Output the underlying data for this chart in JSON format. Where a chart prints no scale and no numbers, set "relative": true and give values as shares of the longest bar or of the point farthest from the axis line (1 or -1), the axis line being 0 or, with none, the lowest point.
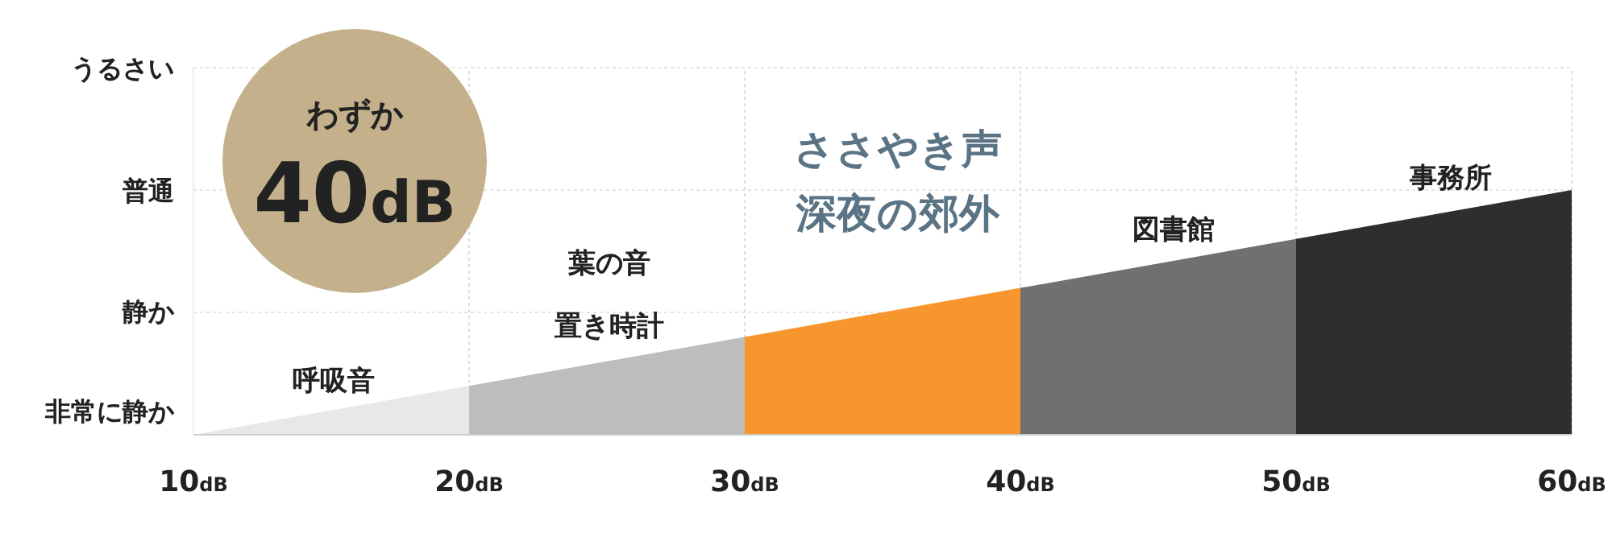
{
  "chart_data": {
    "type": "area",
    "relative": true,
    "xlim": [
      10,
      60
    ],
    "xticks": [
      {
        "value": 10,
        "label": "10dB"
      },
      {
        "value": 20,
        "label": "20dB"
      },
      {
        "value": 30,
        "label": "30dB"
      },
      {
        "value": 40,
        "label": "40dB"
      },
      {
        "value": 50,
        "label": "50dB"
      },
      {
        "value": 60,
        "label": "60dB"
      }
    ],
    "grid": "x",
    "ref_lines": [
      {
        "axis": "y",
        "value": 0.5,
        "color": "#e4e4e4",
        "line_style": "dotted"
      },
      {
        "axis": "y",
        "value": 1,
        "color": "#e4e4e4",
        "line_style": "dotted"
      },
      {
        "axis": "y",
        "value": 1.5,
        "color": "#e4e4e4",
        "line_style": "dotted"
      }
    ],
    "series": [
      {
        "color": "#e8e8e8",
        "x": [
          10,
          20
        ],
        "values": [
          0,
          0.2
        ]
      },
      {
        "color": "#bdbdbd",
        "x": [
          20,
          30
        ],
        "values": [
          0.2,
          0.4
        ]
      },
      {
        "color": "#f7962d",
        "x": [
          30,
          40
        ],
        "values": [
          0.4,
          0.6
        ]
      },
      {
        "color": "#707070",
        "x": [
          40,
          50
        ],
        "values": [
          0.6,
          0.8
        ]
      },
      {
        "color": "#2e2e2e",
        "x": [
          50,
          60
        ],
        "values": [
          0.8,
          1
        ]
      }
    ],
    "annotations": [
      "うるさい",
      "普通",
      "静か",
      "非常に静か",
      "わずか",
      "40dB",
      "呼吸音",
      "葉の音",
      "置き時計",
      "ささやき声",
      "深夜の郊外",
      "図書館",
      "事務所"
    ]
  }
}
